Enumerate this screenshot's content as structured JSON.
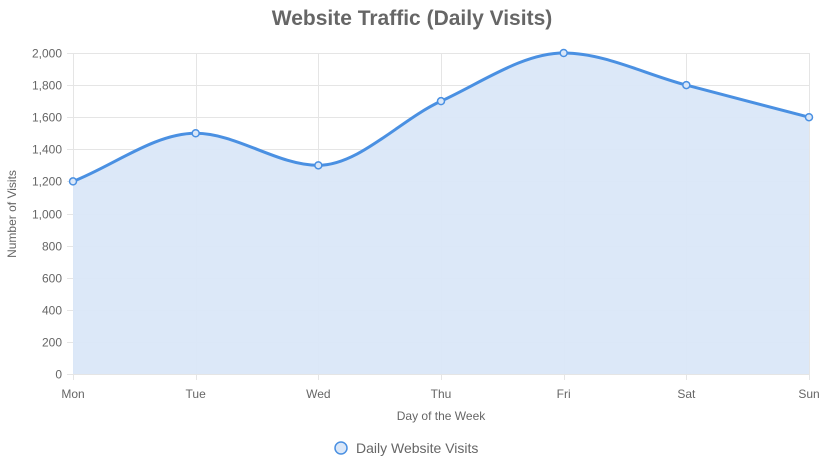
{
  "chart_data": {
    "type": "area",
    "title": "Website Traffic (Daily Visits)",
    "xlabel": "Day of the Week",
    "ylabel": "Number of Visits",
    "categories": [
      "Mon",
      "Tue",
      "Wed",
      "Thu",
      "Fri",
      "Sat",
      "Sun"
    ],
    "series": [
      {
        "name": "Daily Website Visits",
        "values": [
          1200,
          1500,
          1300,
          1700,
          2000,
          1800,
          1600
        ]
      }
    ],
    "ylim": [
      0,
      2000
    ],
    "yticks": [
      0,
      200,
      400,
      600,
      800,
      1000,
      1200,
      1400,
      1600,
      1800,
      2000
    ],
    "ytick_labels": [
      "0",
      "200",
      "400",
      "600",
      "800",
      "1,000",
      "1,200",
      "1,400",
      "1,600",
      "1,800",
      "2,000"
    ],
    "grid": true,
    "smooth": true,
    "legend_position": "bottom",
    "colors": {
      "line": "#4a90e2",
      "fill": "#dae7f8",
      "grid": "#e5e5e5",
      "text": "#666666"
    }
  }
}
